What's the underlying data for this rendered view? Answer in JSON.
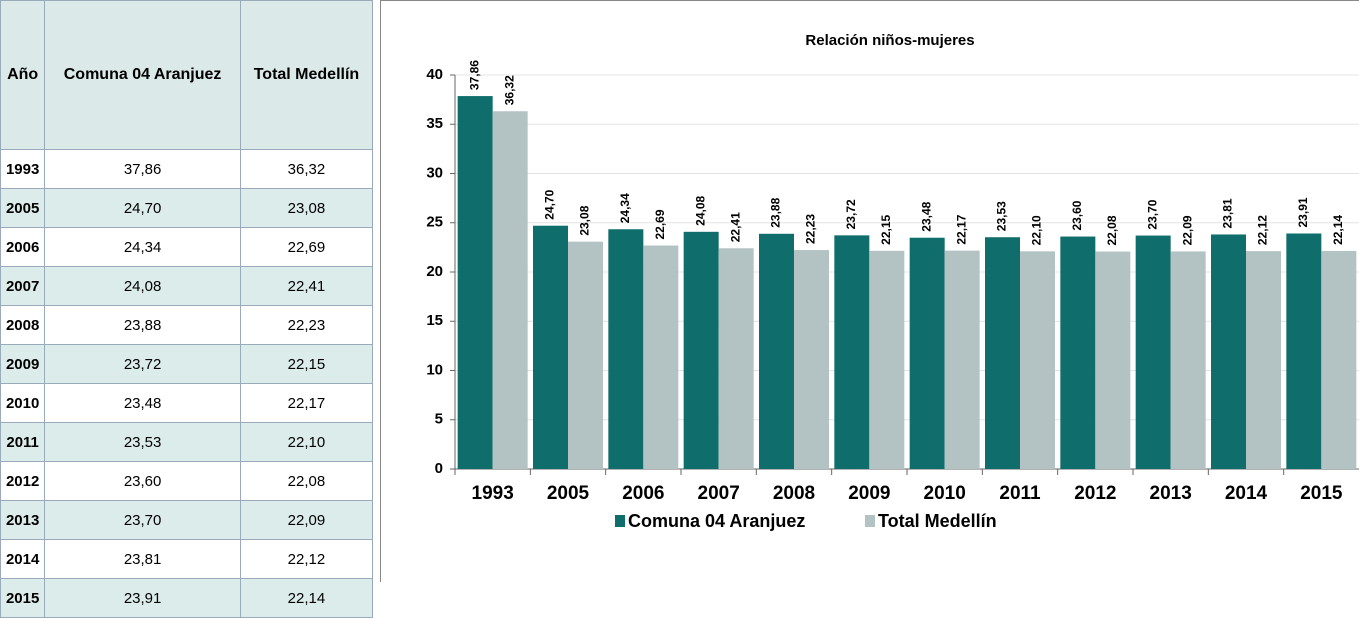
{
  "table": {
    "header": [
      "Año",
      "Comuna 04 Aranjuez",
      "Total Medellín"
    ],
    "rows": [
      [
        "1993",
        "37,86",
        "36,32"
      ],
      [
        "2005",
        "24,70",
        "23,08"
      ],
      [
        "2006",
        "24,34",
        "22,69"
      ],
      [
        "2007",
        "24,08",
        "22,41"
      ],
      [
        "2008",
        "23,88",
        "22,23"
      ],
      [
        "2009",
        "23,72",
        "22,15"
      ],
      [
        "2010",
        "23,48",
        "22,17"
      ],
      [
        "2011",
        "23,53",
        "22,10"
      ],
      [
        "2012",
        "23,60",
        "22,08"
      ],
      [
        "2013",
        "23,70",
        "22,09"
      ],
      [
        "2014",
        "23,81",
        "22,12"
      ],
      [
        "2015",
        "23,91",
        "22,14"
      ]
    ]
  },
  "chart_data": {
    "type": "bar",
    "title": "Relación niños-mujeres",
    "categories": [
      "1993",
      "2005",
      "2006",
      "2007",
      "2008",
      "2009",
      "2010",
      "2011",
      "2012",
      "2013",
      "2014",
      "2015"
    ],
    "series": [
      {
        "name": "Comuna 04 Aranjuez",
        "color": "#0f6e6b",
        "values": [
          37.86,
          24.7,
          24.34,
          24.08,
          23.88,
          23.72,
          23.48,
          23.53,
          23.6,
          23.7,
          23.81,
          23.91
        ],
        "value_labels": [
          "37,86",
          "24,70",
          "24,34",
          "24,08",
          "23,88",
          "23,72",
          "23,48",
          "23,53",
          "23,60",
          "23,70",
          "23,81",
          "23,91"
        ]
      },
      {
        "name": "Total Medellín",
        "color": "#b3c3c3",
        "values": [
          36.32,
          23.08,
          22.69,
          22.41,
          22.23,
          22.15,
          22.17,
          22.1,
          22.08,
          22.09,
          22.12,
          22.14
        ],
        "value_labels": [
          "36,32",
          "23,08",
          "22,69",
          "22,41",
          "22,23",
          "22,15",
          "22,17",
          "22,10",
          "22,08",
          "22,09",
          "22,12",
          "22,14"
        ]
      }
    ],
    "ylim": [
      0,
      40
    ],
    "yticks": [
      0,
      5,
      10,
      15,
      20,
      25,
      30,
      35,
      40
    ],
    "grid": true,
    "legend": "bottom"
  }
}
